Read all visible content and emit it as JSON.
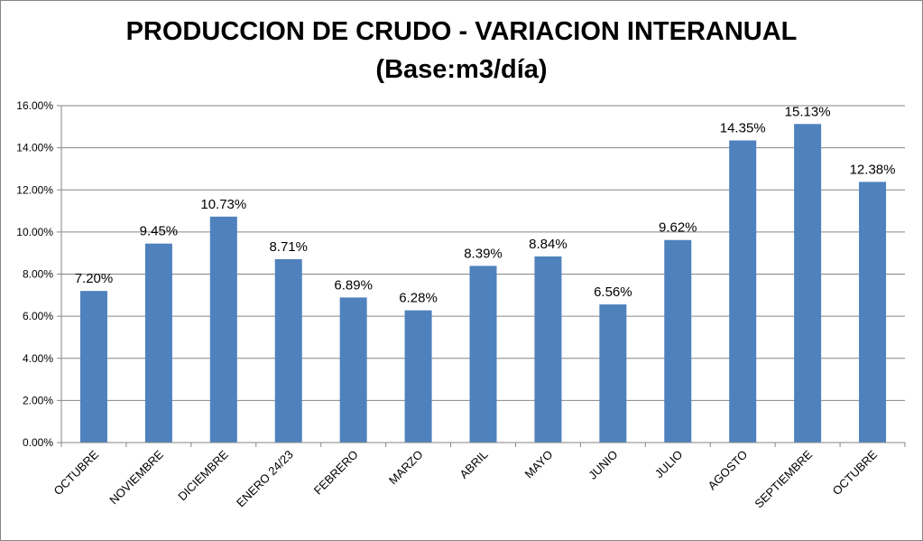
{
  "chart_data": {
    "type": "bar",
    "title": "PRODUCCION DE CRUDO - VARIACION INTERANUAL",
    "subtitle": "(Base:m3/día)",
    "xlabel": "",
    "ylabel": "",
    "ylim": [
      0,
      16
    ],
    "yticks": [
      "0.00%",
      "2.00%",
      "4.00%",
      "6.00%",
      "8.00%",
      "10.00%",
      "12.00%",
      "14.00%",
      "16.00%"
    ],
    "grid": true,
    "categories": [
      "OCTUBRE",
      "NOVIEMBRE",
      "DICIEMBRE",
      "ENERO 24/23",
      "FEBRERO",
      "MARZO",
      "ABRIL",
      "MAYO",
      "JUNIO",
      "JULIO",
      "AGOSTO",
      "SEPTIEMBRE",
      "OCTUBRE"
    ],
    "values": [
      7.2,
      9.45,
      10.73,
      8.71,
      6.89,
      6.28,
      8.39,
      8.84,
      6.56,
      9.62,
      14.35,
      15.13,
      12.38
    ],
    "labels": [
      "7.20%",
      "9.45%",
      "10.73%",
      "8.71%",
      "6.89%",
      "6.28%",
      "8.39%",
      "8.84%",
      "6.56%",
      "9.62%",
      "14.35%",
      "15.13%",
      "12.38%"
    ],
    "bar_color": "#4F81BD"
  }
}
